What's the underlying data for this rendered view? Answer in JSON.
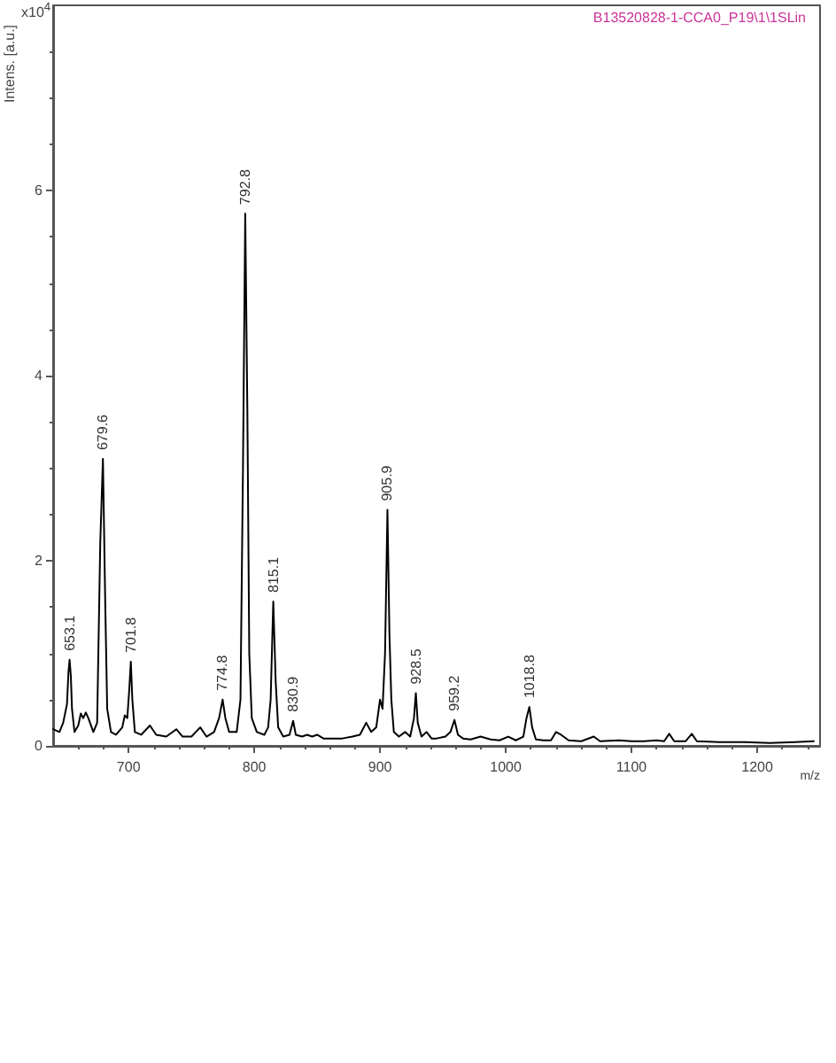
{
  "chart_data": {
    "type": "line",
    "subtitle": "B13520828-1-CCA0_P19\\1\\1SLin",
    "xlabel": "m/z",
    "ylabel": "Intens. [a.u.]",
    "annotations": [
      "x10$^{4}$",
      {
        "text": "653.1",
        "x": 653.1,
        "y": 0.93
      },
      {
        "text": "679.6",
        "x": 679.6,
        "y": 3.1
      },
      {
        "text": "701.8",
        "x": 701.8,
        "y": 0.91
      },
      {
        "text": "774.8",
        "x": 774.8,
        "y": 0.5
      },
      {
        "text": "792.8",
        "x": 792.8,
        "y": 5.75
      },
      {
        "text": "815.1",
        "x": 815.1,
        "y": 1.56
      },
      {
        "text": "830.9",
        "x": 830.9,
        "y": 0.27
      },
      {
        "text": "905.9",
        "x": 905.9,
        "y": 2.55
      },
      {
        "text": "928.5",
        "x": 928.5,
        "y": 0.57
      },
      {
        "text": "959.2",
        "x": 959.2,
        "y": 0.28
      },
      {
        "text": "1018.8",
        "x": 1018.8,
        "y": 0.42
      }
    ],
    "series": [
      {
        "color": "#000000",
        "x": [
          640,
          645,
          648,
          651,
          652.2,
          653.1,
          654.1,
          655,
          657,
          660,
          662,
          664,
          666,
          668,
          672,
          675,
          677.5,
          679.6,
          681.5,
          683,
          686,
          690,
          695,
          697,
          699,
          700.5,
          701.8,
          703,
          705,
          710,
          717,
          722,
          730,
          738,
          743,
          750,
          757,
          762,
          768,
          772,
          774.8,
          777,
          780,
          786,
          789,
          791,
          792.8,
          794.5,
          796,
          798,
          802,
          808,
          811,
          813,
          815.1,
          817,
          819,
          823,
          828,
          830.9,
          833,
          838,
          842,
          846,
          850,
          855,
          862,
          870,
          878,
          884,
          889,
          893,
          897,
          900,
          902,
          904,
          905.9,
          907.5,
          909,
          911,
          915,
          920,
          924,
          927,
          928.5,
          930,
          933,
          937,
          941,
          945,
          952,
          956,
          959.2,
          962,
          966,
          972,
          980,
          988,
          995,
          1002,
          1008,
          1014,
          1016.5,
          1018.8,
          1021,
          1024,
          1030,
          1036,
          1040,
          1044,
          1050,
          1060,
          1070,
          1075,
          1090,
          1100,
          1110,
          1120,
          1126,
          1130,
          1134,
          1143,
          1148,
          1152,
          1170,
          1190,
          1210,
          1230,
          1245
        ],
        "values": [
          0.18,
          0.15,
          0.25,
          0.45,
          0.8,
          0.93,
          0.75,
          0.4,
          0.15,
          0.22,
          0.35,
          0.3,
          0.36,
          0.3,
          0.15,
          0.25,
          2.2,
          3.1,
          1.5,
          0.4,
          0.15,
          0.12,
          0.2,
          0.33,
          0.3,
          0.6,
          0.91,
          0.5,
          0.15,
          0.12,
          0.22,
          0.12,
          0.1,
          0.18,
          0.1,
          0.1,
          0.2,
          0.1,
          0.15,
          0.3,
          0.5,
          0.3,
          0.15,
          0.15,
          0.5,
          3.0,
          5.75,
          3.6,
          1.0,
          0.3,
          0.15,
          0.12,
          0.2,
          0.5,
          1.56,
          0.7,
          0.2,
          0.1,
          0.12,
          0.27,
          0.12,
          0.1,
          0.12,
          0.1,
          0.12,
          0.08,
          0.08,
          0.08,
          0.1,
          0.12,
          0.25,
          0.15,
          0.2,
          0.5,
          0.4,
          1.0,
          2.55,
          1.2,
          0.5,
          0.15,
          0.1,
          0.15,
          0.1,
          0.3,
          0.57,
          0.25,
          0.1,
          0.15,
          0.08,
          0.08,
          0.1,
          0.15,
          0.28,
          0.12,
          0.08,
          0.07,
          0.1,
          0.07,
          0.06,
          0.1,
          0.06,
          0.1,
          0.3,
          0.42,
          0.2,
          0.07,
          0.06,
          0.06,
          0.15,
          0.12,
          0.06,
          0.05,
          0.1,
          0.05,
          0.06,
          0.05,
          0.05,
          0.06,
          0.05,
          0.13,
          0.05,
          0.05,
          0.13,
          0.05,
          0.04,
          0.04,
          0.03,
          0.04,
          0.05
        ]
      }
    ],
    "xlim": [
      640,
      1250
    ],
    "xticks": [
      700,
      800,
      900,
      1000,
      1100,
      1200
    ],
    "ylim": [
      0,
      8
    ],
    "yticks": [
      0,
      2,
      4,
      6
    ],
    "grid": false,
    "marker": "none",
    "line_style": "solid"
  }
}
